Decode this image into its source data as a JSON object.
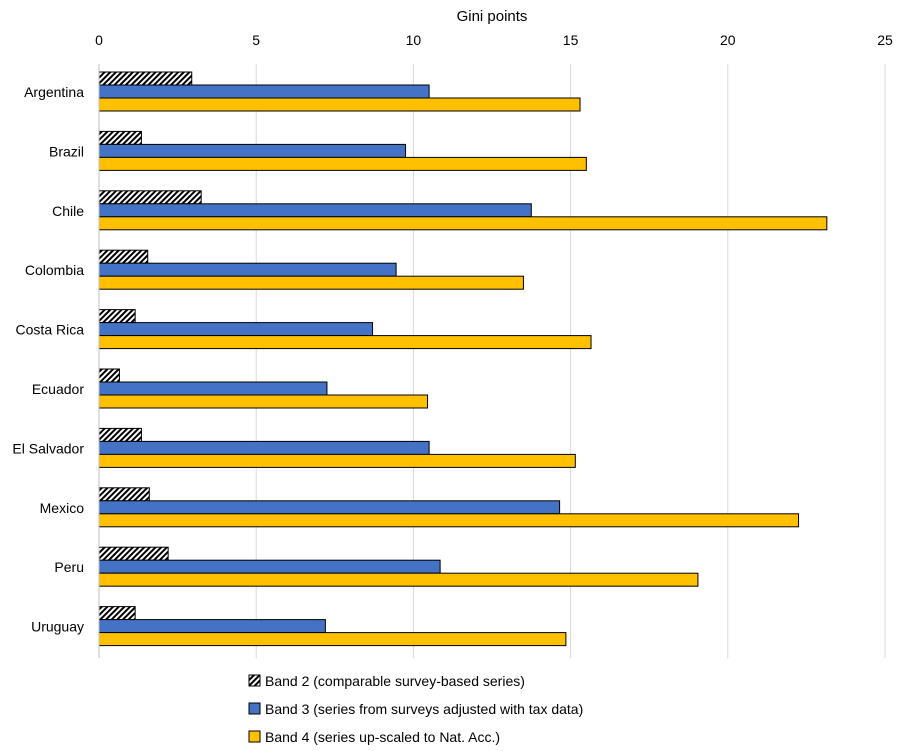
{
  "chart_data": {
    "type": "bar",
    "orientation": "horizontal",
    "xlabel": "Gini points",
    "xaxis_position": "top",
    "xlim": [
      0,
      25
    ],
    "xticks": [
      "0",
      "5",
      "10",
      "15",
      "20",
      "25"
    ],
    "grid": true,
    "legend_position": "bottom",
    "categories": [
      "Argentina",
      "Brazil",
      "Chile",
      "Colombia",
      "Costa Rica",
      "Ecuador",
      "El Salvador",
      "Mexico",
      "Peru",
      "Uruguay"
    ],
    "series": [
      {
        "name": "Band 2 (comparable survey-based series)",
        "color": "#000000",
        "pattern": "diagonal-hatch",
        "values": [
          2.95,
          1.35,
          3.25,
          1.55,
          1.15,
          0.65,
          1.35,
          1.6,
          2.2,
          1.15
        ]
      },
      {
        "name": "Band 3 (series from surveys adjusted with tax data)",
        "color": "#4472c4",
        "values": [
          10.5,
          9.75,
          13.75,
          9.45,
          8.7,
          7.25,
          10.5,
          14.65,
          10.85,
          7.2
        ]
      },
      {
        "name": "Band 4 (series up-scaled to Nat. Acc.)",
        "color": "#ffc000",
        "values": [
          15.3,
          15.5,
          23.15,
          13.5,
          15.65,
          10.45,
          15.15,
          22.25,
          19.05,
          14.85
        ]
      }
    ]
  }
}
